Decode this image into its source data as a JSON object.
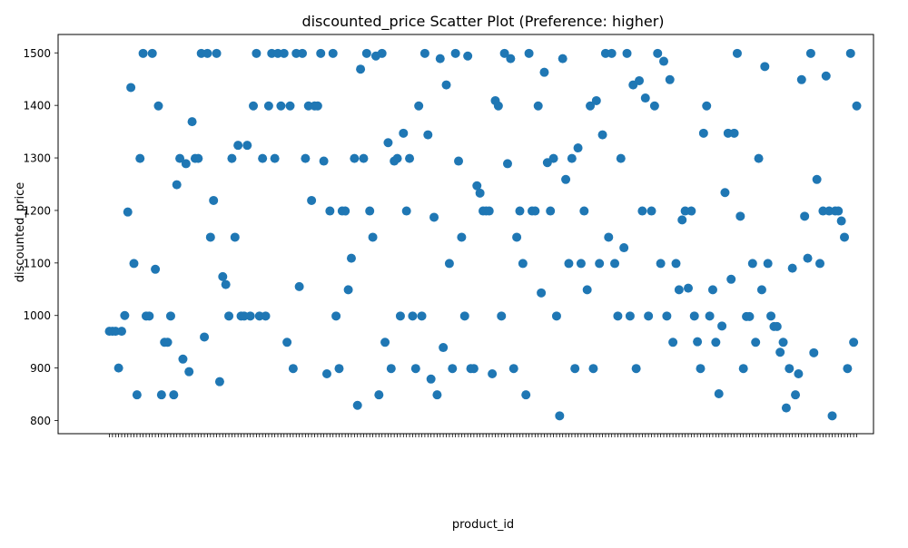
{
  "chart_data": {
    "type": "scatter",
    "title": "discounted_price Scatter Plot (Preference: higher)",
    "xlabel": "product_id",
    "ylabel": "discounted_price",
    "ylim": [
      775,
      1535
    ],
    "yticks": [
      800,
      900,
      1000,
      1100,
      1200,
      1300,
      1400,
      1500
    ],
    "grid": false,
    "point_color": "#1f77b4",
    "x_categories_count": 243,
    "y": [
      970,
      970,
      970,
      900,
      970,
      1000,
      1197,
      1434,
      1099,
      849,
      1299,
      1499,
      999,
      999,
      1499,
      1088,
      1399,
      849,
      949,
      949,
      999,
      849,
      1249,
      1299,
      917,
      1289,
      893,
      1369,
      1299,
      1299,
      1499,
      959,
      1499,
      1149,
      1219,
      1499,
      874,
      1074,
      1059,
      999,
      1299,
      1149,
      1324,
      999,
      999,
      1324,
      999,
      1399,
      1499,
      999,
      1299,
      999,
      1399,
      1499,
      1299,
      1499,
      1399,
      1499,
      949,
      1399,
      899,
      1499,
      1055,
      1499,
      1299,
      1399,
      1219,
      1399,
      1399,
      1499,
      1294,
      889,
      1199,
      1499,
      999,
      899,
      1199,
      1199,
      1049,
      1109,
      1299,
      829,
      1469,
      1299,
      1499,
      1199,
      1149,
      1494,
      849,
      1499,
      949,
      1329,
      899,
      1294,
      1299,
      999,
      1347,
      1199,
      1299,
      999,
      899,
      1399,
      999,
      1499,
      1344,
      879,
      1187,
      849,
      1489,
      939,
      1439,
      1099,
      899,
      1499,
      1294,
      1149,
      999,
      1494,
      899,
      899,
      1247,
      1233,
      1199,
      1199,
      1199,
      889,
      1409,
      1399,
      999,
      1499,
      1289,
      1489,
      899,
      1149,
      1199,
      1099,
      849,
      1499,
      1199,
      1199,
      1399,
      1043,
      1463,
      1291,
      1199,
      1299,
      999,
      809,
      1489,
      1259,
      1099,
      1299,
      899,
      1319,
      1099,
      1199,
      1049,
      1399,
      899,
      1409,
      1099,
      1344,
      1499,
      1149,
      1499,
      1099,
      999,
      1299,
      1129,
      1499,
      999,
      1439,
      899,
      1447,
      1199,
      1414,
      999,
      1199,
      1399,
      1499,
      1099,
      1484,
      999,
      1449,
      949,
      1099,
      1049,
      1182,
      1199,
      1052,
      1199,
      999,
      950,
      899,
      1347,
      1399,
      999,
      1049,
      949,
      851,
      980,
      1234,
      1347,
      1069,
      1347,
      1499,
      1189,
      899,
      998,
      998,
      1099,
      949,
      1299,
      1049,
      1474,
      1099,
      999,
      979,
      979,
      930,
      949,
      824,
      899,
      1090,
      849,
      889,
      1449,
      1189,
      1109,
      1499,
      929,
      1259,
      1099,
      1199,
      1456,
      1199,
      809,
      1199,
      1199,
      1180,
      1149,
      899,
      1499,
      949,
      1399
    ]
  }
}
